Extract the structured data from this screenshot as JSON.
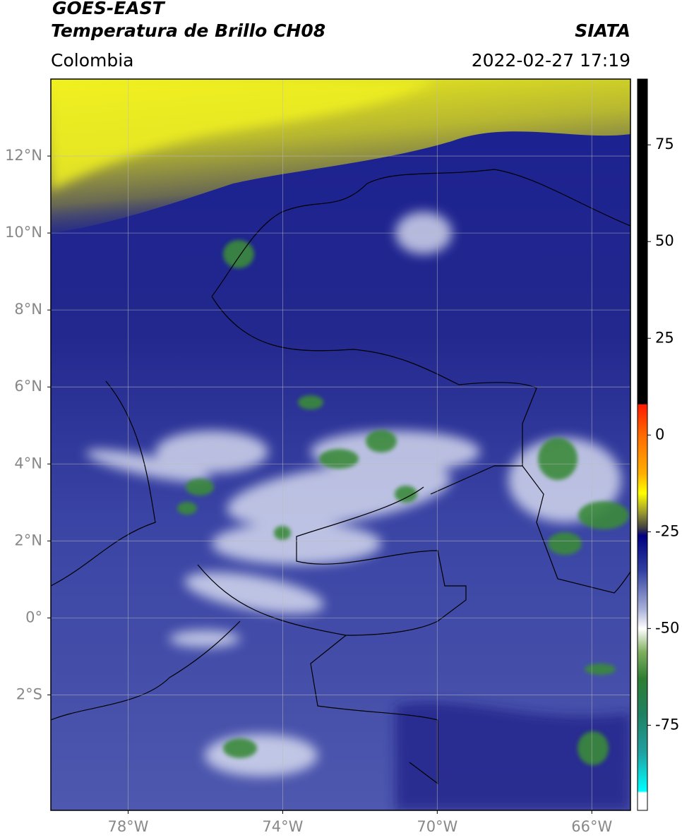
{
  "header": {
    "title": "GOES-EAST",
    "subtitle": "Temperatura de Brillo CH08",
    "source": "SIATA",
    "region": "Colombia",
    "datetime": "2022-02-27 17:19"
  },
  "map": {
    "xlim": [
      -80,
      -65
    ],
    "ylim": [
      -5,
      14
    ],
    "grid": true,
    "xticks": [
      {
        "value": -78,
        "label": "78°W"
      },
      {
        "value": -74,
        "label": "74°W"
      },
      {
        "value": -70,
        "label": "70°W"
      },
      {
        "value": -66,
        "label": "66°W"
      }
    ],
    "yticks": [
      {
        "value": 12,
        "label": "12°N"
      },
      {
        "value": 10,
        "label": "10°N"
      },
      {
        "value": 8,
        "label": "8°N"
      },
      {
        "value": 6,
        "label": "6°N"
      },
      {
        "value": 4,
        "label": "4°N"
      },
      {
        "value": 2,
        "label": "2°N"
      },
      {
        "value": 0,
        "label": "0°"
      },
      {
        "value": -2,
        "label": "2°S"
      }
    ]
  },
  "colorbar": {
    "lim": [
      -97,
      92
    ],
    "ticks": [
      75,
      50,
      25,
      0,
      -25,
      -50,
      -75
    ],
    "colors": [
      {
        "value": 92,
        "color": "#000000"
      },
      {
        "value": 8,
        "color": "#000000"
      },
      {
        "value": 7.9,
        "color": "#ff1a00"
      },
      {
        "value": 0,
        "color": "#ff6a00"
      },
      {
        "value": -10,
        "color": "#ffb000"
      },
      {
        "value": -15,
        "color": "#ffff00"
      },
      {
        "value": -20,
        "color": "#9a9a30"
      },
      {
        "value": -24,
        "color": "#404040"
      },
      {
        "value": -26,
        "color": "#000080"
      },
      {
        "value": -35,
        "color": "#3040a0"
      },
      {
        "value": -45,
        "color": "#a8b0d8"
      },
      {
        "value": -50,
        "color": "#ffffff"
      },
      {
        "value": -56,
        "color": "#80b060"
      },
      {
        "value": -63,
        "color": "#2e7d32"
      },
      {
        "value": -72,
        "color": "#208060"
      },
      {
        "value": -82,
        "color": "#20a0a0"
      },
      {
        "value": -92,
        "color": "#00ffff"
      },
      {
        "value": -92.5,
        "color": "#ffffff"
      },
      {
        "value": -97,
        "color": "#ffffff"
      }
    ]
  }
}
